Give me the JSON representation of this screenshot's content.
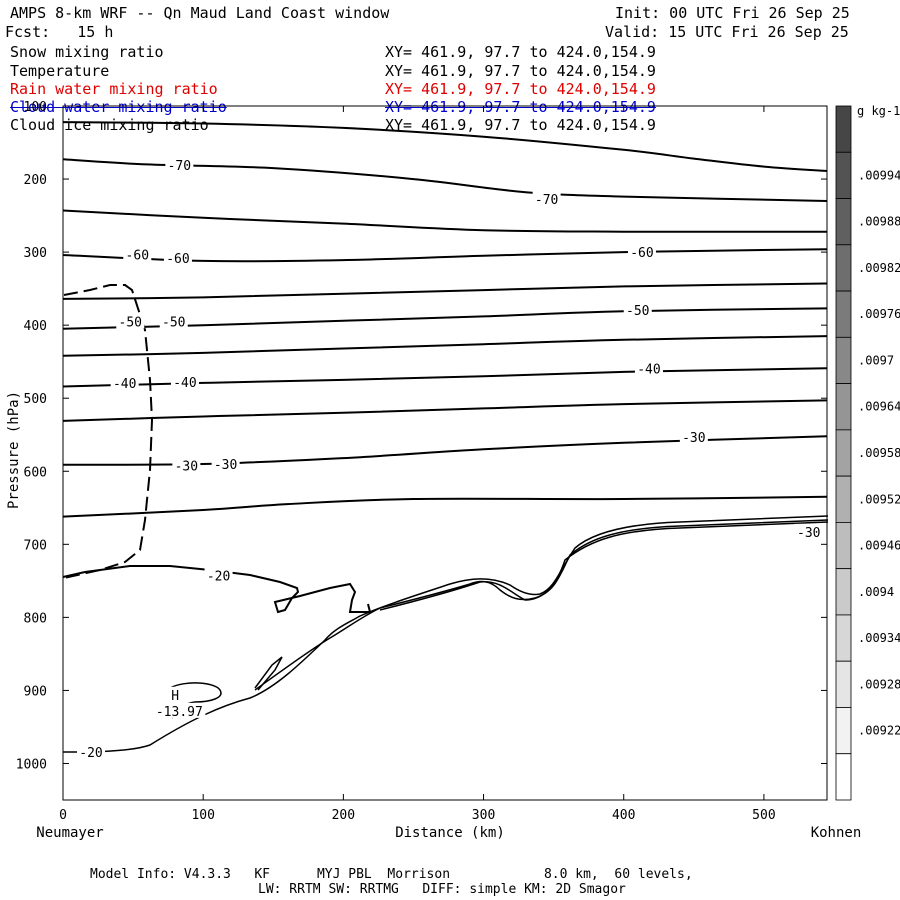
{
  "header": {
    "title": "AMPS 8-km WRF -- Qn Maud Land Coast window",
    "init": "Init: 00 UTC Fri 26 Sep 25",
    "fcst": "Fcst:   15 h",
    "valid": "Valid: 15 UTC Fri 26 Sep 25"
  },
  "legend": [
    {
      "label": "Snow mixing ratio",
      "xy": "XY= 461.9, 97.7 to 424.0,154.9",
      "color": "#000000"
    },
    {
      "label": "Temperature",
      "xy": "XY= 461.9, 97.7 to 424.0,154.9",
      "color": "#000000"
    },
    {
      "label": "Rain water mixing ratio",
      "xy": "XY= 461.9, 97.7 to 424.0,154.9",
      "color": "#e00000"
    },
    {
      "label": "Cloud water mixing ratio",
      "xy": "XY= 461.9, 97.7 to 424.0,154.9",
      "color": "#0000cc"
    },
    {
      "label": "Cloud ice mixing ratio",
      "xy": "XY= 461.9, 97.7 to 424.0,154.9",
      "color": "#000000"
    }
  ],
  "footer": {
    "line1": "Model Info: V4.3.3   KF      MYJ PBL  Morrison            8.0 km,  60 levels,",
    "line2": "LW: RRTM SW: RRTMG   DIFF: simple KM: 2D Smagor"
  },
  "chart_data": {
    "type": "contour",
    "ylabel": "Pressure (hPa)",
    "xlabel": "Distance (km)",
    "x_start_label": "Neumayer",
    "x_end_label": "Kohnen",
    "xlim": [
      0,
      545
    ],
    "ylim": [
      1050,
      100
    ],
    "x_ticks": [
      0,
      100,
      200,
      300,
      400,
      500
    ],
    "y_ticks": [
      100,
      200,
      300,
      400,
      500,
      600,
      700,
      800,
      900,
      1000
    ],
    "colorbar": {
      "unit": "g kg-1",
      "labels": [
        ".00994",
        ".00988",
        ".00982",
        ".00976",
        ".0097",
        ".00964",
        ".00958",
        ".00952",
        ".00946",
        ".0094",
        ".00934",
        ".00928",
        ".00922"
      ]
    },
    "contour_labels": [
      {
        "text": "-70",
        "x": 83,
        "p": 181
      },
      {
        "text": "-70",
        "x": 345,
        "p": 227
      },
      {
        "text": "-60",
        "x": 53,
        "p": 303
      },
      {
        "text": "-60",
        "x": 82,
        "p": 308
      },
      {
        "text": "-60",
        "x": 413,
        "p": 300
      },
      {
        "text": "-50",
        "x": 48,
        "p": 395
      },
      {
        "text": "-50",
        "x": 79,
        "p": 395
      },
      {
        "text": "-50",
        "x": 410,
        "p": 379
      },
      {
        "text": "-40",
        "x": 44,
        "p": 479
      },
      {
        "text": "-40",
        "x": 87,
        "p": 478
      },
      {
        "text": "-40",
        "x": 418,
        "p": 459
      },
      {
        "text": "-30",
        "x": 88,
        "p": 592
      },
      {
        "text": "-30",
        "x": 116,
        "p": 590
      },
      {
        "text": "-30",
        "x": 450,
        "p": 553
      },
      {
        "text": "-30",
        "x": 532,
        "p": 683
      },
      {
        "text": "-20",
        "x": 111,
        "p": 743
      },
      {
        "text": "-20",
        "x": 20,
        "p": 984
      },
      {
        "text": "H",
        "x": 80,
        "p": 906
      },
      {
        "text": "-13.97",
        "x": 83,
        "p": 928
      }
    ],
    "isotherms": [
      [
        [
          0,
          122
        ],
        [
          100,
          124
        ],
        [
          200,
          130
        ],
        [
          300,
          142
        ],
        [
          400,
          160
        ],
        [
          450,
          172
        ],
        [
          500,
          183
        ],
        [
          545,
          189
        ]
      ],
      [
        [
          0,
          173
        ],
        [
          60,
          180
        ],
        [
          150,
          185
        ],
        [
          250,
          200
        ],
        [
          330,
          218
        ],
        [
          400,
          224
        ],
        [
          545,
          230
        ]
      ],
      [
        [
          0,
          243
        ],
        [
          100,
          253
        ],
        [
          200,
          261
        ],
        [
          300,
          270
        ],
        [
          400,
          272
        ],
        [
          545,
          272
        ]
      ],
      [
        [
          0,
          304
        ],
        [
          100,
          312
        ],
        [
          200,
          311
        ],
        [
          300,
          305
        ],
        [
          400,
          300
        ],
        [
          545,
          296
        ]
      ],
      [
        [
          0,
          364
        ],
        [
          100,
          362
        ],
        [
          200,
          357
        ],
        [
          300,
          352
        ],
        [
          400,
          347
        ],
        [
          545,
          343
        ]
      ],
      [
        [
          0,
          405
        ],
        [
          100,
          400
        ],
        [
          200,
          394
        ],
        [
          300,
          388
        ],
        [
          400,
          381
        ],
        [
          545,
          377
        ]
      ],
      [
        [
          0,
          442
        ],
        [
          100,
          438
        ],
        [
          200,
          432
        ],
        [
          300,
          426
        ],
        [
          400,
          420
        ],
        [
          545,
          415
        ]
      ],
      [
        [
          0,
          484
        ],
        [
          100,
          479
        ],
        [
          200,
          475
        ],
        [
          300,
          470
        ],
        [
          400,
          464
        ],
        [
          545,
          459
        ]
      ],
      [
        [
          0,
          531
        ],
        [
          100,
          525
        ],
        [
          200,
          520
        ],
        [
          300,
          514
        ],
        [
          400,
          508
        ],
        [
          545,
          503
        ]
      ],
      [
        [
          0,
          591
        ],
        [
          100,
          590
        ],
        [
          200,
          582
        ],
        [
          300,
          570
        ],
        [
          400,
          561
        ],
        [
          545,
          552
        ]
      ],
      [
        [
          0,
          662
        ],
        [
          100,
          653
        ],
        [
          160,
          645
        ],
        [
          250,
          638
        ],
        [
          400,
          638
        ],
        [
          545,
          635
        ]
      ]
    ]
  }
}
